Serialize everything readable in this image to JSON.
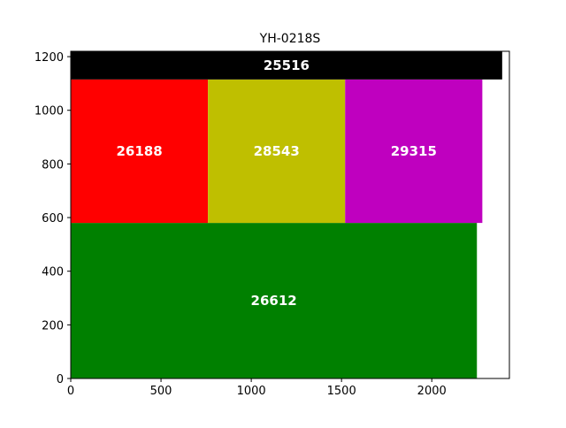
{
  "chart_data": {
    "type": "treemap",
    "title": "YH-0218S",
    "xlabel": "",
    "ylabel": "",
    "xlim": [
      0,
      2430
    ],
    "ylim": [
      0,
      1220
    ],
    "xticks": [
      0,
      500,
      1000,
      1500,
      2000
    ],
    "yticks": [
      0,
      200,
      400,
      600,
      800,
      1000,
      1200
    ],
    "grid": false,
    "blocks": [
      {
        "label": "26612",
        "color": "#008000",
        "x0": 0,
        "x1": 2250,
        "y0": 0,
        "y1": 580
      },
      {
        "label": "26188",
        "color": "#ff0000",
        "x0": 0,
        "x1": 760,
        "y0": 580,
        "y1": 1115
      },
      {
        "label": "28543",
        "color": "#bfbf00",
        "x0": 760,
        "x1": 1520,
        "y0": 580,
        "y1": 1115
      },
      {
        "label": "29315",
        "color": "#bf00bf",
        "x0": 1520,
        "x1": 2280,
        "y0": 580,
        "y1": 1115
      },
      {
        "label": "25516",
        "color": "#000000",
        "x0": 0,
        "x1": 2390,
        "y0": 1115,
        "y1": 1220
      }
    ]
  }
}
